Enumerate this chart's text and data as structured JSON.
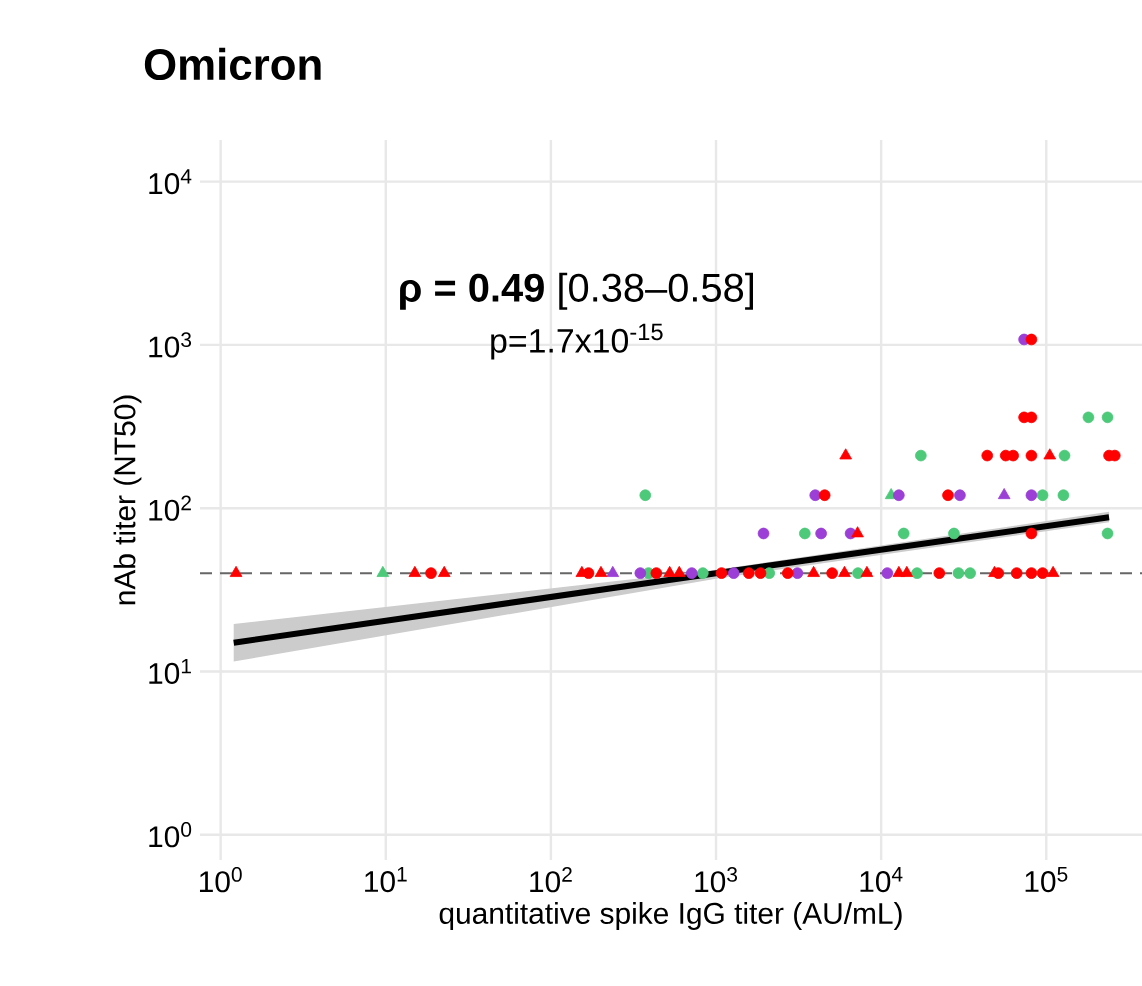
{
  "chart_data": {
    "type": "scatter",
    "title": "Omicron",
    "xlabel": "quantitative spike IgG titer (AU/mL)",
    "ylabel": "nAb titer (NT50)",
    "annotations": [
      "**ρ = 0.49** [0.38–0.58]",
      "p=1.7x10$^{-15}$"
    ],
    "log": "xy",
    "grid": true,
    "xlim": [
      0.75,
      380000
    ],
    "ylim": [
      0.7,
      18000
    ],
    "xticks": [
      {
        "value": 1,
        "label": "10$^{0}$"
      },
      {
        "value": 10,
        "label": "10$^{1}$"
      },
      {
        "value": 100,
        "label": "10$^{2}$"
      },
      {
        "value": 1000,
        "label": "10$^{3}$"
      },
      {
        "value": 10000,
        "label": "10$^{4}$"
      },
      {
        "value": 100000,
        "label": "10$^{5}$"
      }
    ],
    "yticks": [
      {
        "value": 1,
        "label": "10$^{0}$"
      },
      {
        "value": 10,
        "label": "10$^{1}$"
      },
      {
        "value": 100,
        "label": "10$^{2}$"
      },
      {
        "value": 1000,
        "label": "10$^{3}$"
      },
      {
        "value": 10000,
        "label": "10$^{4}$"
      }
    ],
    "ref_lines": [
      {
        "axis": "y",
        "value": 40,
        "color": "#666666",
        "line_style": "dashed"
      }
    ],
    "series": [
      {
        "type": "line",
        "color": "#000000",
        "x": [
          1.2,
          1000,
          240000
        ],
        "values": [
          15,
          40,
          88
        ],
        "lower": [
          11.5,
          37,
          82
        ],
        "upper": [
          19.5,
          42,
          95
        ]
      },
      {
        "color": "#4dc97a",
        "marker": "circle",
        "x": [
          390,
          832,
          2100,
          7240,
          16500,
          29400,
          34600,
          373,
          3450,
          13700,
          17400,
          27600,
          95000,
          127000,
          129000,
          180000,
          235000,
          235000
        ],
        "values": [
          40,
          40,
          40,
          40,
          40,
          40,
          40,
          120,
          70,
          70,
          210,
          70,
          120,
          120,
          210,
          360,
          360,
          70
        ]
      },
      {
        "color": "#4dc97a",
        "marker": "triangle",
        "x": [
          9.6,
          11500
        ],
        "values": [
          40,
          120
        ]
      },
      {
        "color": "#9b3fd6",
        "marker": "circle",
        "x": [
          348,
          713,
          1280,
          3110,
          10900,
          3990,
          12800,
          30000,
          81300,
          1940,
          4330,
          6530,
          73400
        ],
        "values": [
          40,
          40,
          40,
          40,
          40,
          120,
          120,
          120,
          120,
          70,
          70,
          70,
          1080
        ]
      },
      {
        "color": "#9b3fd6",
        "marker": "triangle",
        "x": [
          237,
          55600
        ],
        "values": [
          40,
          120
        ]
      },
      {
        "color": "#ff0000",
        "marker": "circle",
        "x": [
          18.8,
          169,
          435,
          1080,
          1580,
          1860,
          2720,
          5050,
          22500,
          51200,
          66200,
          81300,
          95000,
          4550,
          25400,
          43900,
          56800,
          63000,
          81300,
          81300,
          73400,
          81300,
          81300,
          240000,
          260000
        ],
        "values": [
          40,
          40,
          40,
          40,
          40,
          40,
          40,
          40,
          40,
          40,
          40,
          40,
          40,
          120,
          120,
          210,
          210,
          210,
          210,
          70,
          360,
          360,
          1080,
          210,
          210
        ]
      },
      {
        "color": "#ff0000",
        "marker": "triangle",
        "x": [
          1.24,
          15,
          22.6,
          154,
          201,
          524,
          599,
          3900,
          6000,
          8200,
          12800,
          14300,
          48600,
          110000,
          6100,
          7200,
          105000
        ],
        "values": [
          40,
          40,
          40,
          40,
          40,
          40,
          40,
          40,
          40,
          40,
          40,
          40,
          40,
          40,
          210,
          70,
          210
        ]
      }
    ]
  }
}
